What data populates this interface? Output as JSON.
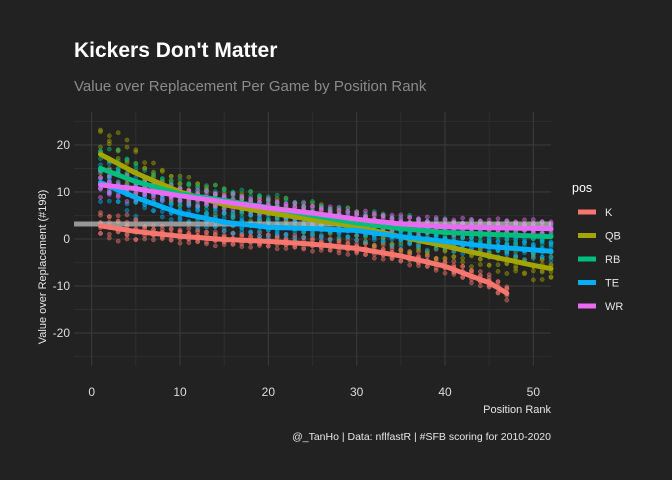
{
  "chart_data": {
    "type": "scatter",
    "title": "Kickers Don't Matter",
    "subtitle": "Value over Replacement Per Game by Position Rank",
    "xlabel": "Position Rank",
    "ylabel": "Value over Replacement (#198)",
    "caption": "@_TanHo | Data: nflfastR | #SFB scoring for 2010-2020",
    "xlim": [
      -2,
      52
    ],
    "ylim": [
      -27,
      27
    ],
    "x_ticks": [
      0,
      10,
      20,
      30,
      40,
      50
    ],
    "y_ticks": [
      -20,
      -10,
      0,
      10,
      20
    ],
    "grid": true,
    "legend": {
      "title": "pos",
      "placement": "right"
    },
    "reference_line": {
      "y": 3.2,
      "color": "#bdbdbd"
    },
    "series": [
      {
        "name": "K",
        "color": "#F8766D",
        "trend": [
          [
            1,
            2.8
          ],
          [
            5,
            1.6
          ],
          [
            10,
            0.6
          ],
          [
            15,
            -0.1
          ],
          [
            20,
            -0.5
          ],
          [
            25,
            -1.1
          ],
          [
            30,
            -2.0
          ],
          [
            35,
            -3.6
          ],
          [
            40,
            -5.8
          ],
          [
            45,
            -9.3
          ],
          [
            47,
            -11.5
          ]
        ],
        "spread": 1.2,
        "max_x": 47
      },
      {
        "name": "QB",
        "color": "#A3A500",
        "trend": [
          [
            1,
            18.0
          ],
          [
            5,
            14.0
          ],
          [
            10,
            10.0
          ],
          [
            15,
            7.3
          ],
          [
            20,
            5.6
          ],
          [
            25,
            4.1
          ],
          [
            30,
            2.6
          ],
          [
            35,
            0.5
          ],
          [
            40,
            -1.5
          ],
          [
            45,
            -3.6
          ],
          [
            50,
            -5.6
          ],
          [
            52,
            -6.3
          ]
        ],
        "spread": 2.5,
        "max_x": 52
      },
      {
        "name": "RB",
        "color": "#00BF7D",
        "trend": [
          [
            1,
            15.0
          ],
          [
            5,
            12.2
          ],
          [
            10,
            9.6
          ],
          [
            15,
            8.2
          ],
          [
            20,
            6.7
          ],
          [
            25,
            5.0
          ],
          [
            30,
            3.4
          ],
          [
            35,
            2.2
          ],
          [
            40,
            1.4
          ],
          [
            45,
            1.0
          ],
          [
            52,
            0.5
          ]
        ],
        "spread": 2.0,
        "max_x": 52
      },
      {
        "name": "TE",
        "color": "#00B0F6",
        "trend": [
          [
            1,
            12.0
          ],
          [
            5,
            8.8
          ],
          [
            10,
            5.5
          ],
          [
            15,
            3.6
          ],
          [
            20,
            2.5
          ],
          [
            25,
            2.2
          ],
          [
            30,
            1.8
          ],
          [
            35,
            0.5
          ],
          [
            40,
            -0.5
          ],
          [
            45,
            -1.6
          ],
          [
            52,
            -2.6
          ]
        ],
        "spread": 1.8,
        "max_x": 52
      },
      {
        "name": "WR",
        "color": "#E76BF3",
        "trend": [
          [
            1,
            11.5
          ],
          [
            5,
            10.7
          ],
          [
            10,
            9.2
          ],
          [
            15,
            7.9
          ],
          [
            20,
            6.6
          ],
          [
            25,
            5.5
          ],
          [
            30,
            4.2
          ],
          [
            35,
            3.2
          ],
          [
            40,
            2.6
          ],
          [
            45,
            2.4
          ],
          [
            52,
            2.2
          ]
        ],
        "spread": 1.3,
        "max_x": 52
      }
    ]
  }
}
